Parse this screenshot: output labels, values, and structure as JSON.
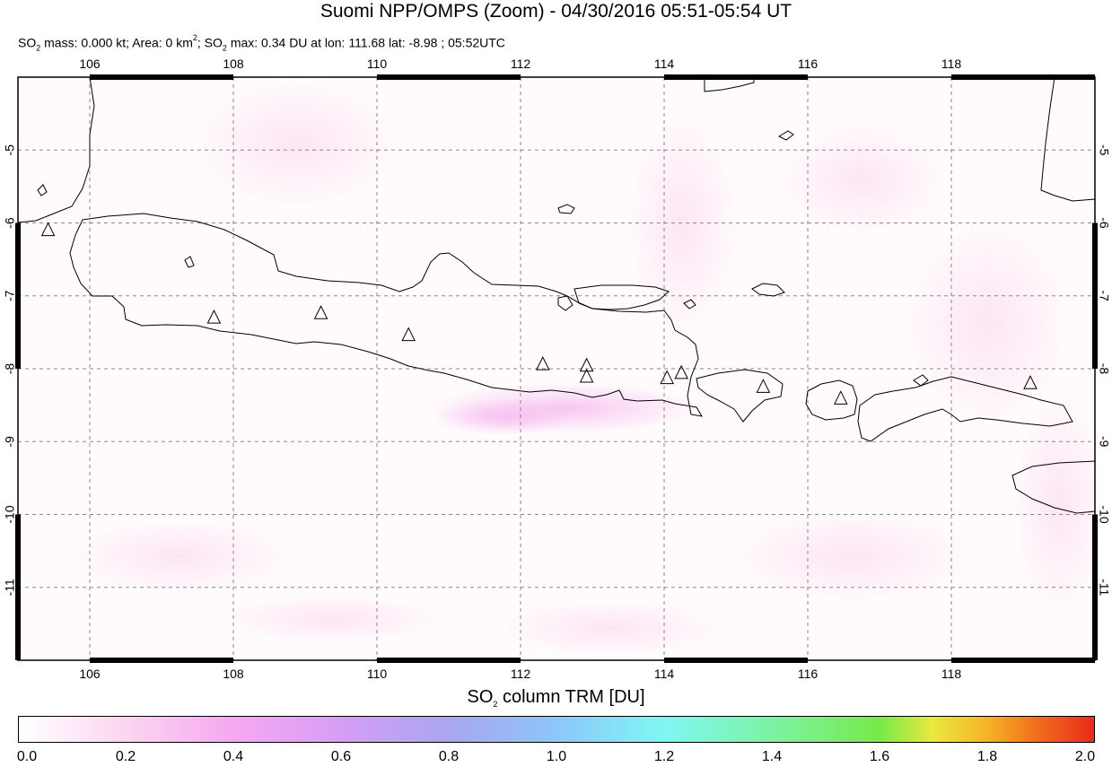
{
  "title": "Suomi NPP/OMPS (Zoom) - 04/30/2016 05:51-05:54 UT",
  "subtitle": {
    "so2_mass": "SO",
    "sub1": "2",
    "mass_text": " mass: 0.000 kt; Area: 0 km",
    "sup1": "2",
    "max_prefix": "; SO",
    "sub2": "2",
    "rest": " max: 0.34 DU at lon: 111.68 lat: -8.98 ; 05:52UTC"
  },
  "map": {
    "lon_range": [
      105,
      120
    ],
    "lat_range": [
      -12,
      -4
    ],
    "lon_ticks": [
      "106",
      "108",
      "110",
      "112",
      "114",
      "116",
      "118"
    ],
    "lat_ticks": [
      "-5",
      "-6",
      "-7",
      "-8",
      "-9",
      "-10",
      "-11"
    ],
    "volcanoes": [
      {
        "lon": 105.42,
        "lat": -6.1
      },
      {
        "lon": 107.73,
        "lat": -7.3
      },
      {
        "lon": 109.22,
        "lat": -7.24
      },
      {
        "lon": 110.44,
        "lat": -7.54
      },
      {
        "lon": 112.31,
        "lat": -7.94
      },
      {
        "lon": 112.92,
        "lat": -7.96
      },
      {
        "lon": 112.92,
        "lat": -8.11
      },
      {
        "lon": 114.04,
        "lat": -8.13
      },
      {
        "lon": 114.24,
        "lat": -8.06
      },
      {
        "lon": 115.38,
        "lat": -8.25
      },
      {
        "lon": 116.46,
        "lat": -8.41
      },
      {
        "lon": 119.1,
        "lat": -8.2
      }
    ],
    "coast_color": "#000000",
    "grid_color": "#888888"
  },
  "colorbar": {
    "title_prefix": "SO",
    "title_sub": "2",
    "title_rest": " column TRM [DU]",
    "ticks": [
      "0.0",
      "0.2",
      "0.4",
      "0.6",
      "0.8",
      "1.0",
      "1.2",
      "1.4",
      "1.6",
      "1.8",
      "2.0"
    ]
  }
}
